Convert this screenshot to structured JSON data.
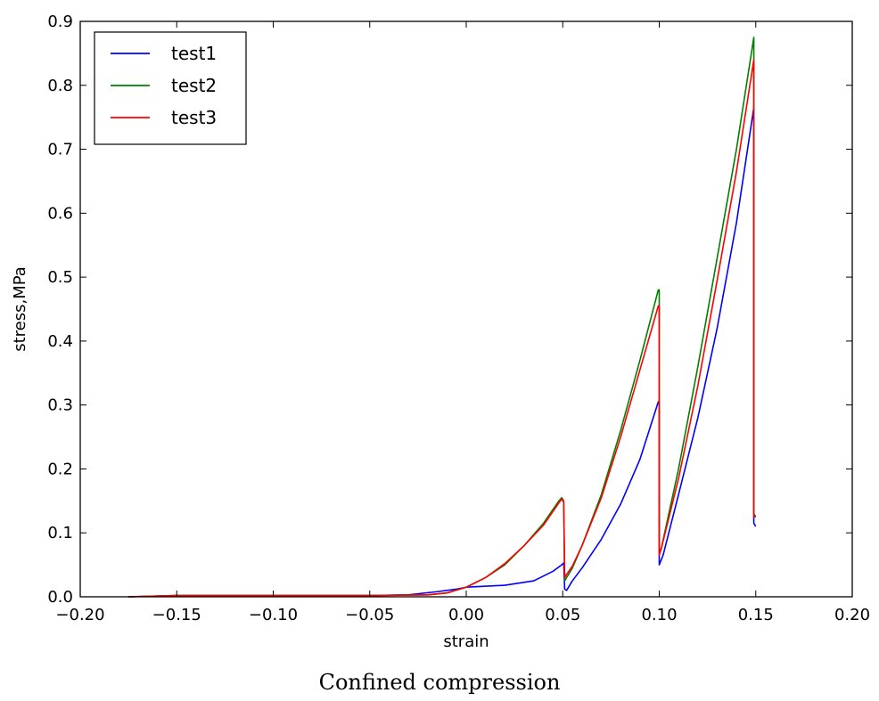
{
  "caption": "Confined compression",
  "chart_data": {
    "type": "line",
    "title": "",
    "xlabel": "strain",
    "ylabel": "stress,MPa",
    "xlim": [
      -0.2,
      0.2
    ],
    "ylim": [
      0.0,
      0.9
    ],
    "xticks": [
      -0.2,
      -0.15,
      -0.1,
      -0.05,
      0.0,
      0.05,
      0.1,
      0.15,
      0.2
    ],
    "xtick_labels": [
      "−0.20",
      "−0.15",
      "−0.10",
      "−0.05",
      "0.00",
      "0.05",
      "0.10",
      "0.15",
      "0.20"
    ],
    "yticks": [
      0.0,
      0.1,
      0.2,
      0.3,
      0.4,
      0.5,
      0.6,
      0.7,
      0.8,
      0.9
    ],
    "ytick_labels": [
      "0.0",
      "0.1",
      "0.2",
      "0.3",
      "0.4",
      "0.5",
      "0.6",
      "0.7",
      "0.8",
      "0.9"
    ],
    "grid": false,
    "legend_position": "top-left",
    "series": [
      {
        "name": "test1",
        "color": "#0000ff",
        "points": [
          [
            -0.175,
            0.0
          ],
          [
            -0.15,
            0.002
          ],
          [
            -0.1,
            0.002
          ],
          [
            -0.05,
            0.002
          ],
          [
            -0.03,
            0.003
          ],
          [
            -0.015,
            0.008
          ],
          [
            -0.005,
            0.012
          ],
          [
            0.0,
            0.015
          ],
          [
            0.02,
            0.018
          ],
          [
            0.035,
            0.025
          ],
          [
            0.045,
            0.04
          ],
          [
            0.0495,
            0.05
          ],
          [
            0.0505,
            0.053
          ],
          [
            0.051,
            0.012
          ],
          [
            0.052,
            0.01
          ],
          [
            0.055,
            0.025
          ],
          [
            0.06,
            0.045
          ],
          [
            0.07,
            0.09
          ],
          [
            0.08,
            0.145
          ],
          [
            0.09,
            0.215
          ],
          [
            0.0995,
            0.305
          ],
          [
            0.1,
            0.305
          ],
          [
            0.1,
            0.05
          ],
          [
            0.102,
            0.065
          ],
          [
            0.11,
            0.16
          ],
          [
            0.12,
            0.28
          ],
          [
            0.13,
            0.42
          ],
          [
            0.14,
            0.585
          ],
          [
            0.149,
            0.765
          ],
          [
            0.149,
            0.115
          ],
          [
            0.15,
            0.11
          ]
        ]
      },
      {
        "name": "test2",
        "color": "#008000",
        "points": [
          [
            -0.175,
            0.0
          ],
          [
            -0.15,
            0.002
          ],
          [
            -0.1,
            0.002
          ],
          [
            -0.05,
            0.002
          ],
          [
            -0.02,
            0.003
          ],
          [
            -0.01,
            0.006
          ],
          [
            0.0,
            0.015
          ],
          [
            0.01,
            0.03
          ],
          [
            0.02,
            0.05
          ],
          [
            0.03,
            0.08
          ],
          [
            0.04,
            0.115
          ],
          [
            0.048,
            0.15
          ],
          [
            0.0495,
            0.155
          ],
          [
            0.0505,
            0.15
          ],
          [
            0.051,
            0.025
          ],
          [
            0.052,
            0.03
          ],
          [
            0.055,
            0.045
          ],
          [
            0.06,
            0.08
          ],
          [
            0.07,
            0.16
          ],
          [
            0.08,
            0.26
          ],
          [
            0.09,
            0.37
          ],
          [
            0.0995,
            0.48
          ],
          [
            0.1,
            0.48
          ],
          [
            0.1,
            0.07
          ],
          [
            0.101,
            0.075
          ],
          [
            0.11,
            0.2
          ],
          [
            0.12,
            0.36
          ],
          [
            0.13,
            0.53
          ],
          [
            0.14,
            0.7
          ],
          [
            0.149,
            0.875
          ],
          [
            0.149,
            0.13
          ],
          [
            0.15,
            0.125
          ]
        ]
      },
      {
        "name": "test3",
        "color": "#ff0000",
        "points": [
          [
            -0.175,
            0.0
          ],
          [
            -0.15,
            0.002
          ],
          [
            -0.1,
            0.002
          ],
          [
            -0.05,
            0.002
          ],
          [
            -0.02,
            0.003
          ],
          [
            -0.01,
            0.006
          ],
          [
            0.0,
            0.015
          ],
          [
            0.01,
            0.03
          ],
          [
            0.02,
            0.052
          ],
          [
            0.03,
            0.08
          ],
          [
            0.04,
            0.112
          ],
          [
            0.048,
            0.147
          ],
          [
            0.0495,
            0.153
          ],
          [
            0.0505,
            0.148
          ],
          [
            0.051,
            0.03
          ],
          [
            0.052,
            0.035
          ],
          [
            0.055,
            0.048
          ],
          [
            0.06,
            0.08
          ],
          [
            0.07,
            0.155
          ],
          [
            0.08,
            0.25
          ],
          [
            0.09,
            0.355
          ],
          [
            0.0995,
            0.455
          ],
          [
            0.1,
            0.455
          ],
          [
            0.1,
            0.065
          ],
          [
            0.101,
            0.075
          ],
          [
            0.11,
            0.185
          ],
          [
            0.12,
            0.33
          ],
          [
            0.13,
            0.495
          ],
          [
            0.14,
            0.665
          ],
          [
            0.149,
            0.84
          ],
          [
            0.149,
            0.125
          ],
          [
            0.15,
            0.125
          ]
        ]
      }
    ]
  }
}
